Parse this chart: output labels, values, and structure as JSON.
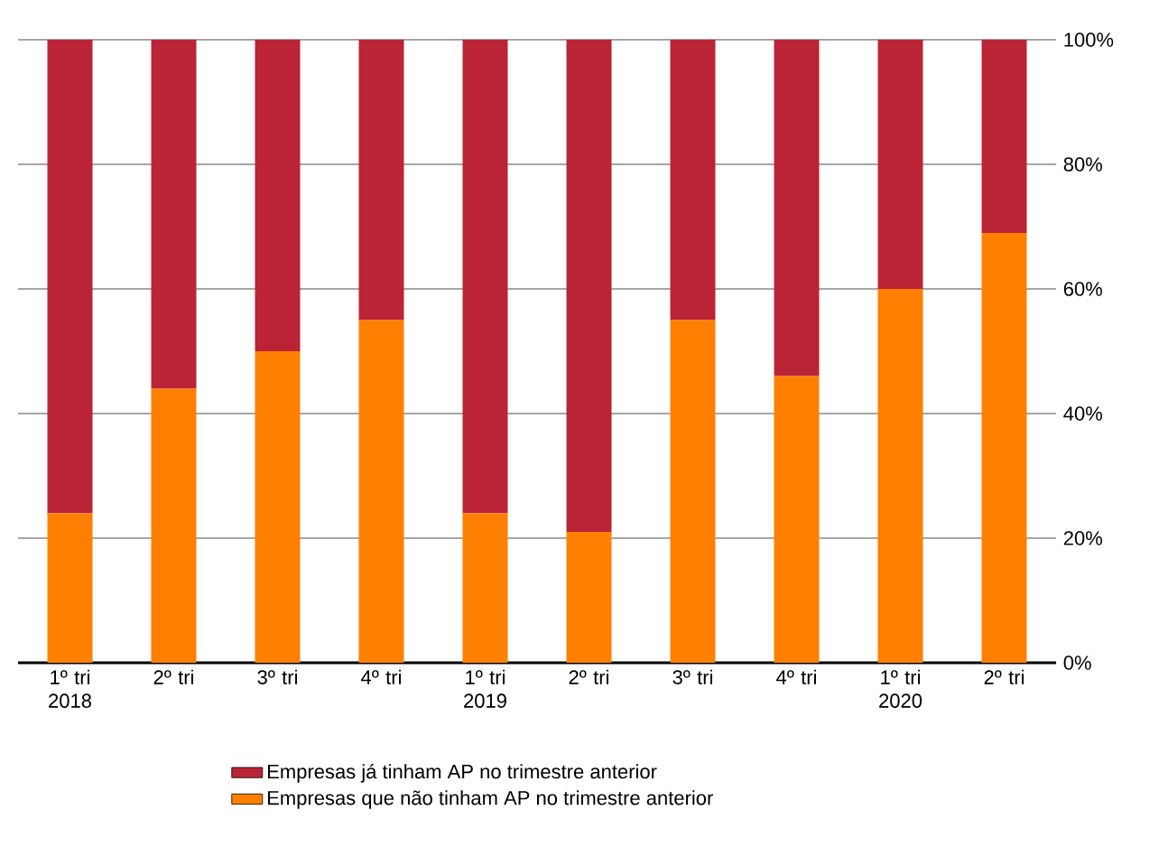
{
  "chart_data": {
    "type": "bar",
    "stacked": true,
    "categories": [
      "1º tri 2018",
      "2º tri",
      "3º tri",
      "4º tri",
      "1º tri 2019",
      "2º tri",
      "3º tri",
      "4º tri",
      "1º tri 2020",
      "2º tri"
    ],
    "series": [
      {
        "name": "Empresas que não tinham AP no trimestre anterior",
        "color": "#ff8000",
        "values": [
          24,
          44,
          50,
          55,
          24,
          21,
          55,
          46,
          60,
          69
        ]
      },
      {
        "name": "Empresas já tinham AP no trimestre anterior",
        "color": "#bb2436",
        "values": [
          76,
          56,
          50,
          45,
          76,
          79,
          45,
          54,
          40,
          31
        ]
      }
    ],
    "ylim": [
      0,
      100
    ],
    "yticks": [
      {
        "value": 0,
        "label": "0%"
      },
      {
        "value": 20,
        "label": "20%"
      },
      {
        "value": 40,
        "label": "40%"
      },
      {
        "value": 60,
        "label": "60%"
      },
      {
        "value": 80,
        "label": "80%"
      },
      {
        "value": 100,
        "label": "100%"
      }
    ],
    "grid": "y",
    "legend": "bottom"
  }
}
